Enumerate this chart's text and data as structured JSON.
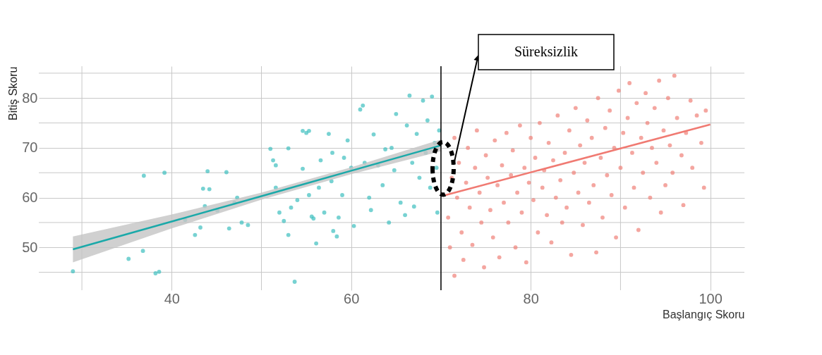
{
  "chart_data": {
    "type": "scatter",
    "xlabel": "Başlangıç Skoru",
    "ylabel": "Bitiş Skoru",
    "xlim": [
      25.2,
      103.8
    ],
    "ylim": [
      41.4,
      86.4
    ],
    "xticks": [
      {
        "value": 30,
        "label": null
      },
      40,
      {
        "value": 50,
        "label": null
      },
      60,
      {
        "value": 70,
        "label": null
      },
      80,
      {
        "value": 90,
        "label": null
      },
      100
    ],
    "yticks": [
      {
        "value": 45,
        "label": null
      },
      50,
      {
        "value": 55,
        "label": null
      },
      60,
      {
        "value": 65,
        "label": null
      },
      70,
      {
        "value": 75,
        "label": null
      },
      80,
      {
        "value": 85,
        "label": null
      }
    ],
    "grid": true,
    "ref_lines": [
      {
        "axis": "x",
        "value": 70,
        "color": "#000000"
      }
    ],
    "annotations": [
      "Süreksizlik"
    ],
    "series": [
      {
        "color": "#3dbfbf",
        "marker": "circle",
        "x": [
          29,
          35.2,
          36.8,
          36.9,
          38.2,
          38.6,
          39.2,
          41.5,
          42.6,
          43.2,
          43.5,
          44.2,
          44.0,
          46.1,
          43.7,
          45.1,
          47.0,
          47.3,
          46.4,
          47.8,
          48.5,
          51.0,
          51.3,
          51.6,
          51.6,
          52.0,
          52.5,
          53.0,
          53.3,
          53.0,
          53.7,
          54.0,
          54.6,
          55.0,
          55.3,
          54.6,
          55.3,
          55.6,
          55.8,
          56.1,
          56.4,
          56.6,
          57.5,
          57.9,
          57.8,
          58.0,
          58.4,
          58.6,
          59.2,
          59.6,
          60.0,
          61.0,
          61.3,
          61.5,
          62.0,
          62.2,
          62.5,
          63.0,
          63.5,
          63.8,
          64.5,
          64.8,
          65.0,
          65.5,
          66.2,
          66.5,
          66.8,
          67.0,
          67.3,
          67.6,
          68.0,
          68.3,
          68.5,
          68.8,
          69.0,
          69.3,
          69.5,
          69.6,
          69.8,
          66.0,
          64.2,
          60.3,
          59.0,
          57.0
        ],
        "values": [
          45.2,
          47.7,
          49.3,
          64.4,
          44.8,
          45.1,
          65.0,
          55.5,
          52.5,
          54.0,
          61.8,
          61.7,
          65.3,
          65.1,
          58.3,
          57.4,
          59.0,
          60.0,
          53.8,
          55.0,
          54.5,
          69.8,
          67.5,
          66.5,
          62.0,
          57.0,
          55.3,
          69.9,
          58.0,
          52.5,
          43.1,
          59.5,
          73.4,
          73.0,
          73.4,
          65.8,
          60.5,
          56.2,
          55.8,
          50.8,
          62.0,
          67.5,
          72.8,
          69.0,
          63.3,
          53.3,
          52.2,
          56.0,
          68.0,
          71.5,
          66.0,
          77.7,
          78.5,
          67.0,
          60.0,
          57.5,
          72.7,
          66.5,
          62.5,
          69.7,
          70.0,
          65.5,
          76.8,
          59.0,
          74.5,
          80.5,
          67.0,
          58.2,
          72.8,
          64.0,
          79.5,
          69.0,
          75.5,
          62.0,
          80.3,
          71.0,
          66.0,
          57.0,
          73.5,
          56.5,
          55.0,
          54.3,
          60.5,
          57.0
        ]
      },
      {
        "color": "#f08078",
        "marker": "circle",
        "x": [
          70.8,
          71,
          71.2,
          71.5,
          71.5,
          71.8,
          72,
          72.3,
          72.5,
          72.8,
          73,
          73.2,
          73.5,
          73.8,
          74,
          74.3,
          74.5,
          74.8,
          75,
          75.2,
          75.5,
          75.8,
          76,
          76.3,
          76.5,
          76.8,
          77,
          77.3,
          77.5,
          77.8,
          78,
          78.3,
          78.5,
          78.8,
          79,
          79.3,
          79.5,
          79.8,
          80,
          80.3,
          80.5,
          80.8,
          81,
          81.3,
          81.5,
          81.8,
          82,
          82.3,
          82.5,
          82.8,
          83,
          83.3,
          83.5,
          83.8,
          84,
          84.3,
          84.5,
          84.8,
          85,
          85.3,
          85.5,
          85.8,
          86,
          86.3,
          86.5,
          86.8,
          87,
          87.3,
          87.5,
          87.8,
          88,
          88.3,
          88.5,
          88.8,
          89,
          89.3,
          89.5,
          89.8,
          90,
          90.3,
          90.5,
          90.8,
          91,
          91.3,
          91.5,
          91.8,
          92,
          92.3,
          92.5,
          92.8,
          93,
          93.3,
          93.5,
          93.8,
          94,
          94.3,
          94.5,
          94.8,
          95,
          95.3,
          95.5,
          95.8,
          96,
          96.3,
          96.8,
          97,
          97.3,
          97.8,
          98,
          98.5,
          99,
          99.5,
          99.3
        ],
        "values": [
          56,
          50,
          64,
          72,
          44.3,
          60,
          67,
          53,
          47.5,
          63,
          70,
          58,
          50.5,
          66,
          73.5,
          61,
          55,
          46,
          68.5,
          64,
          57.5,
          52,
          71.5,
          62.5,
          48,
          66.5,
          59,
          73,
          55,
          64.5,
          69.5,
          50,
          61,
          74.5,
          57,
          66,
          47,
          63,
          72,
          59.5,
          68,
          53,
          75,
          62,
          65.5,
          56.5,
          71,
          51,
          67.5,
          60,
          76.5,
          63.5,
          55,
          69,
          58,
          73.5,
          48.5,
          65,
          78,
          61,
          70.5,
          54.5,
          67,
          75.5,
          59,
          72,
          62.5,
          49,
          80,
          68,
          56,
          74,
          64.5,
          77.5,
          60.5,
          70,
          52,
          81.5,
          66,
          73,
          58,
          76,
          83,
          69,
          62,
          79,
          53.5,
          72,
          65,
          81,
          75,
          60,
          70,
          78,
          67,
          83.5,
          57,
          73.5,
          62.5,
          80,
          70.5,
          65,
          84.5,
          76,
          68.5,
          58.5,
          73,
          79.5,
          66,
          76.5,
          71,
          77.5,
          62
        ]
      },
      {
        "type": "line",
        "color": "#1aa9a9",
        "x": [
          29,
          40,
          50,
          60,
          70
        ],
        "values": [
          49.6,
          55.2,
          60.3,
          65.4,
          70.5
        ],
        "lower": [
          47.0,
          53.8,
          59.6,
          64.7,
          69.3
        ],
        "upper": [
          52.2,
          56.6,
          61.0,
          66.1,
          71.7
        ]
      },
      {
        "type": "line",
        "color": "#f07a72",
        "x": [
          70.5,
          100
        ],
        "values": [
          60.5,
          74.7
        ]
      }
    ]
  }
}
